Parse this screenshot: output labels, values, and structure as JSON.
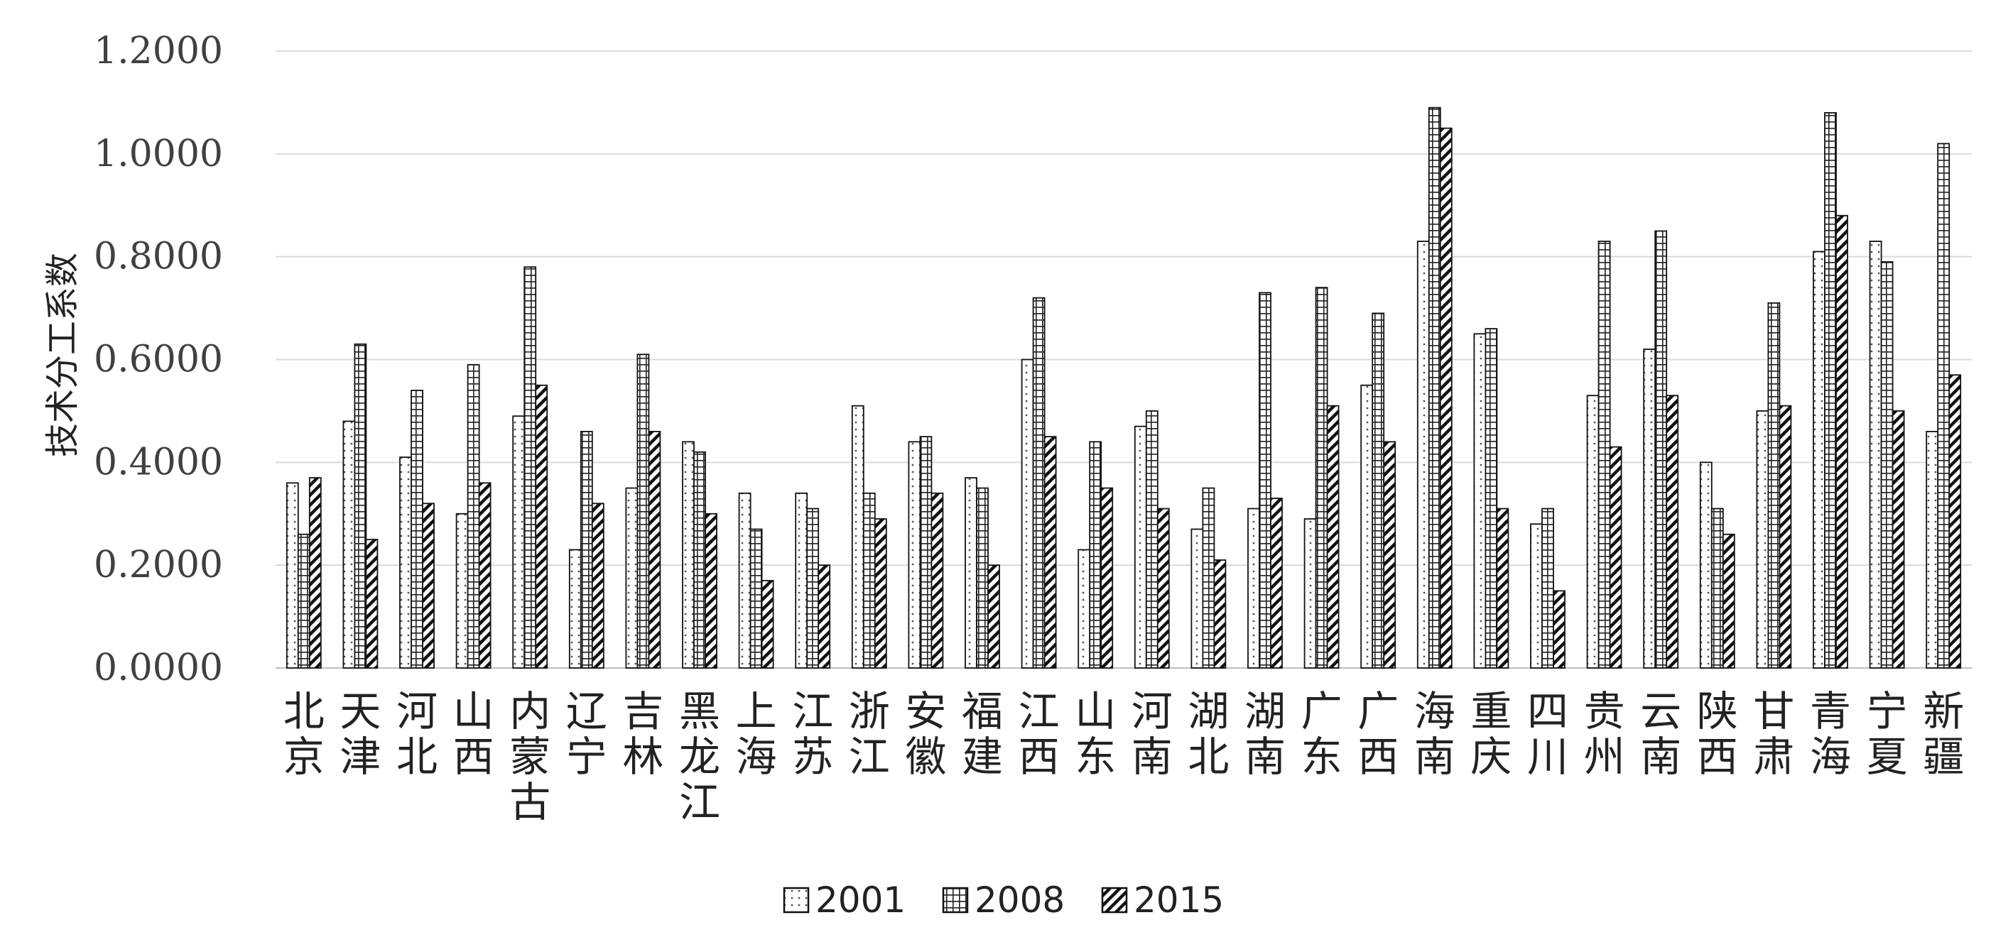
{
  "chart_data": {
    "type": "bar",
    "title": "",
    "xlabel": "",
    "ylabel": "技术分工系数",
    "ylim": [
      0,
      1.2
    ],
    "yticks": [
      "0.0000",
      "0.2000",
      "0.4000",
      "0.6000",
      "0.8000",
      "1.0000",
      "1.2000"
    ],
    "grid": true,
    "legend_position": "bottom",
    "categories": [
      "北京",
      "天津",
      "河北",
      "山西",
      "内蒙古",
      "辽宁",
      "吉林",
      "黑龙江",
      "上海",
      "江苏",
      "浙江",
      "安徽",
      "福建",
      "江西",
      "山东",
      "河南",
      "湖北",
      "湖南",
      "广东",
      "广西",
      "海南",
      "重庆",
      "四川",
      "贵州",
      "云南",
      "陕西",
      "甘肃",
      "青海",
      "宁夏",
      "新疆"
    ],
    "series": [
      {
        "name": "2001",
        "pattern": "dots",
        "values": [
          0.36,
          0.48,
          0.41,
          0.3,
          0.49,
          0.23,
          0.35,
          0.44,
          0.34,
          0.34,
          0.51,
          0.44,
          0.37,
          0.6,
          0.23,
          0.47,
          0.27,
          0.31,
          0.29,
          0.55,
          0.83,
          0.65,
          0.28,
          0.53,
          0.62,
          0.4,
          0.5,
          0.81,
          0.83,
          0.46
        ]
      },
      {
        "name": "2008",
        "pattern": "grid",
        "values": [
          0.26,
          0.63,
          0.54,
          0.59,
          0.78,
          0.46,
          0.61,
          0.42,
          0.27,
          0.31,
          0.34,
          0.45,
          0.35,
          0.72,
          0.44,
          0.5,
          0.35,
          0.73,
          0.74,
          0.69,
          1.09,
          0.66,
          0.31,
          0.83,
          0.85,
          0.31,
          0.71,
          1.08,
          0.79,
          1.02
        ]
      },
      {
        "name": "2015",
        "pattern": "diagonal",
        "values": [
          0.37,
          0.25,
          0.32,
          0.36,
          0.55,
          0.32,
          0.46,
          0.3,
          0.17,
          0.2,
          0.29,
          0.34,
          0.2,
          0.45,
          0.35,
          0.31,
          0.21,
          0.33,
          0.51,
          0.44,
          1.05,
          0.31,
          0.15,
          0.43,
          0.53,
          0.26,
          0.51,
          0.88,
          0.5,
          0.57
        ]
      }
    ]
  }
}
